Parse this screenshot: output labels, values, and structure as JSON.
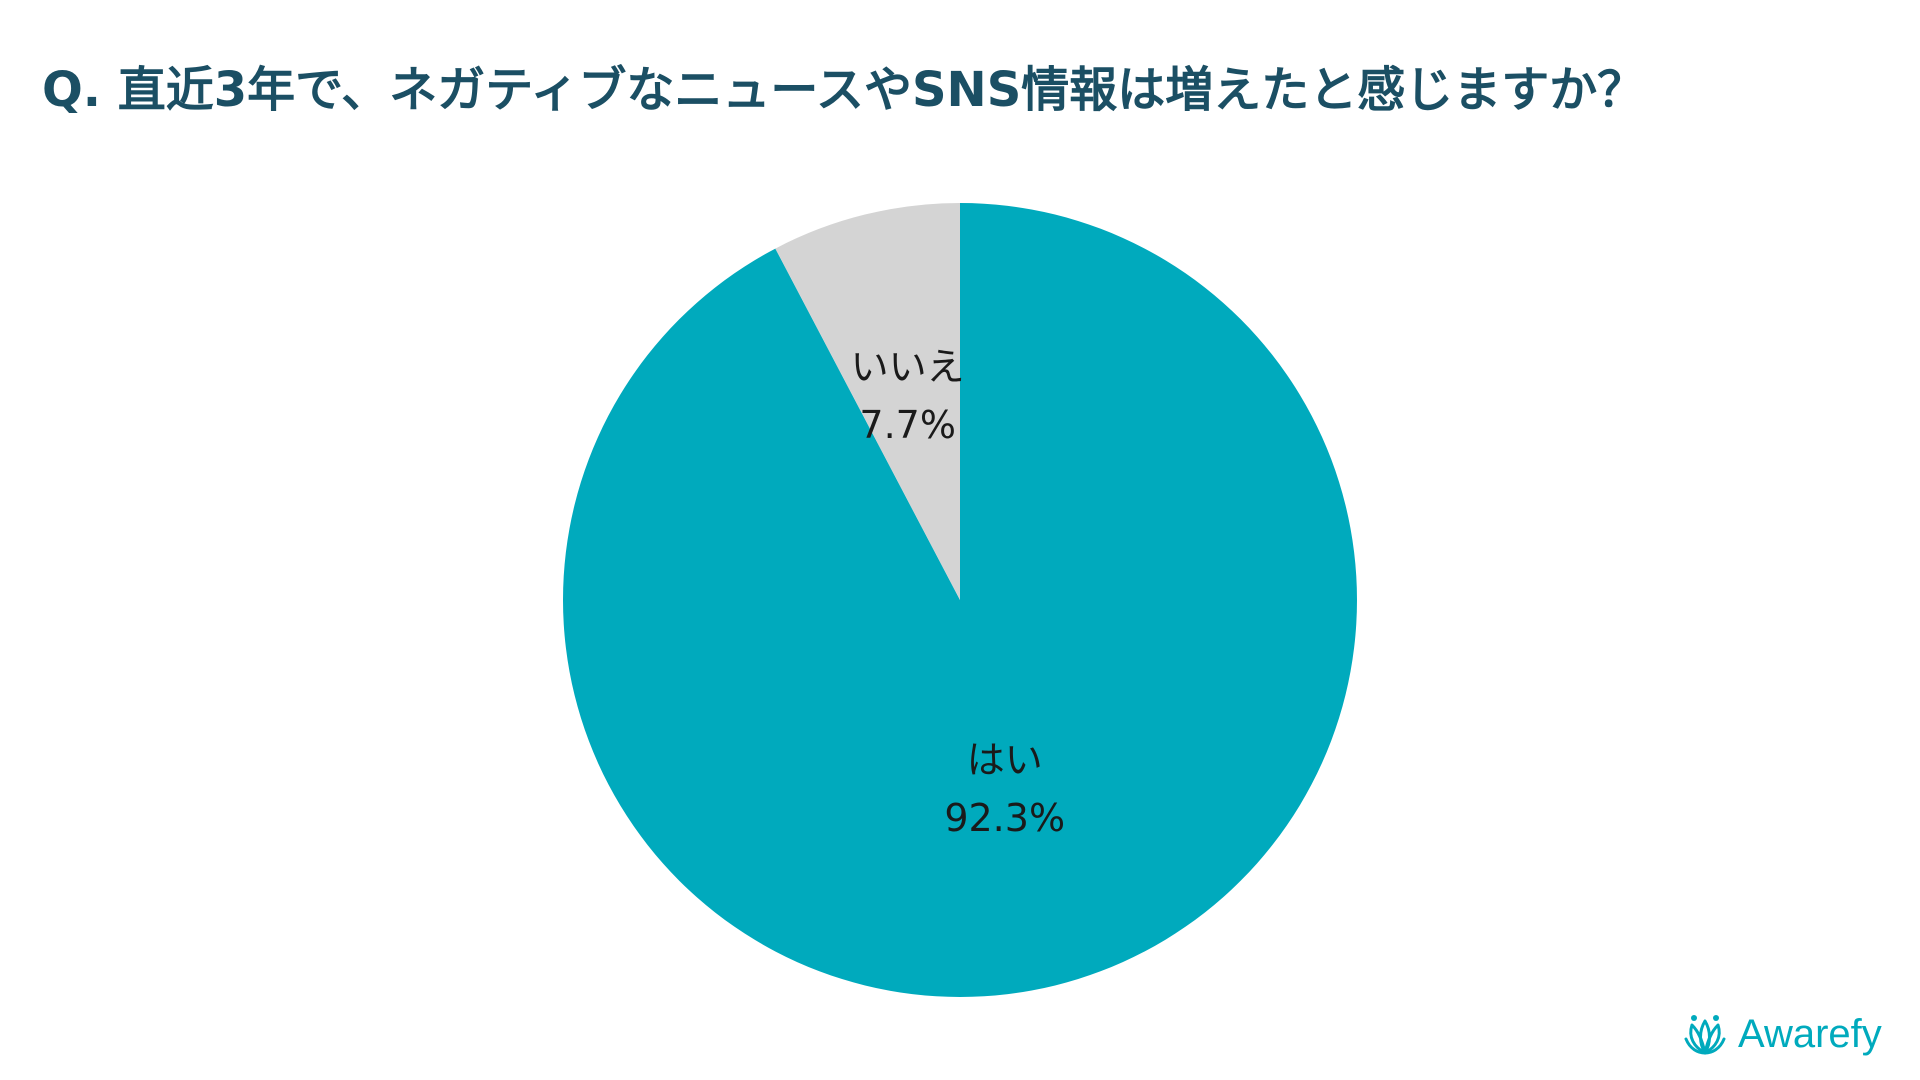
{
  "title": "Q. 直近3年で、ネガティブなニュースやSNS情報は増えたと感じますか？",
  "chart_data": {
    "type": "pie",
    "title": "Q. 直近3年で、ネガティブなニュースやSNS情報は増えたと感じますか？",
    "slices": [
      {
        "label": "はい",
        "value": 92.3,
        "display": "92.3%",
        "color": "#00aabd"
      },
      {
        "label": "いいえ",
        "value": 7.7,
        "display": "7.7%",
        "color": "#d4d4d4"
      }
    ],
    "start": "12 o'clock",
    "direction": "clockwise"
  },
  "brand": {
    "name": "Awarefy",
    "icon": "awarefy-lotus-icon",
    "color": "#00aabd"
  },
  "colors": {
    "title": "#1b4f64",
    "accent": "#00aabd",
    "neutral": "#d4d4d4"
  }
}
